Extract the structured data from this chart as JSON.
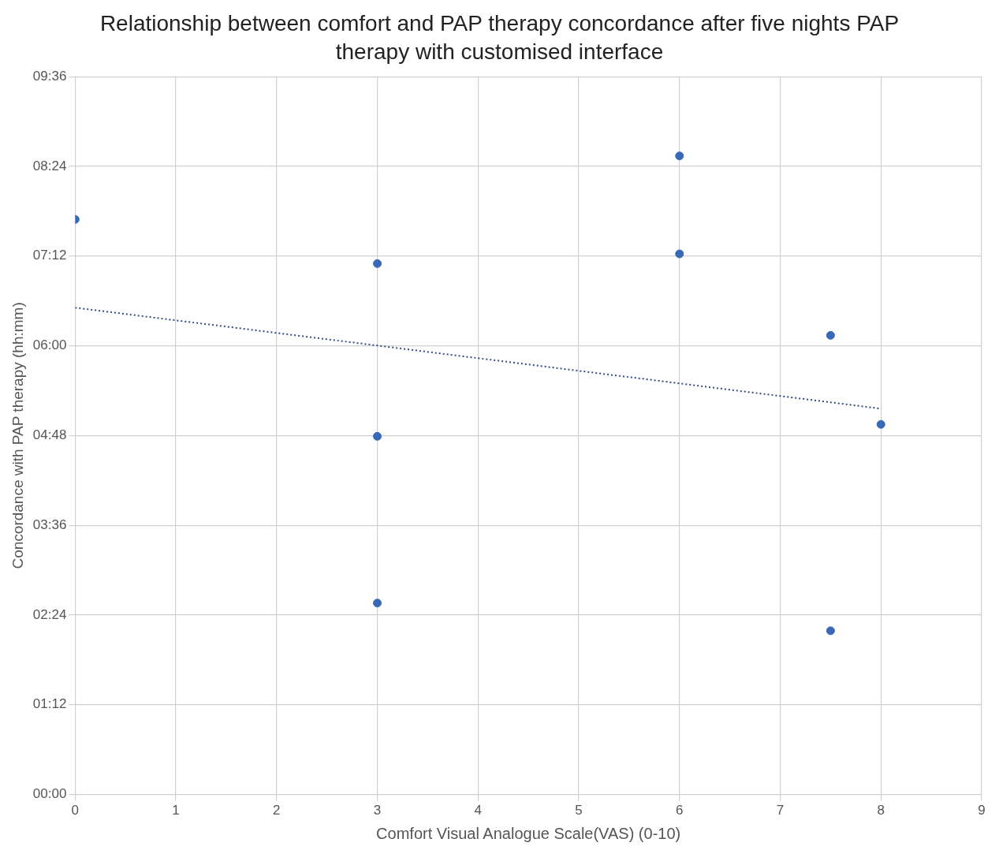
{
  "chart_data": {
    "type": "scatter",
    "title": "Relationship between comfort and PAP therapy concordance after five nights PAP therapy with customised interface",
    "xlabel": "Comfort Visual Analogue Scale(VAS) (0-10)",
    "ylabel": "Concordance with PAP therapy (hh:mm)",
    "series": [
      {
        "type": "scatter",
        "color": "#3a68b8",
        "marker": "circle",
        "x": [
          0,
          3,
          3,
          3,
          6,
          6,
          7.5,
          7.5,
          8
        ],
        "values": [
          7.69,
          7.1,
          4.79,
          2.56,
          8.54,
          7.23,
          6.14,
          2.19,
          4.95
        ]
      },
      {
        "type": "line",
        "color": "#2f4f86",
        "line_style": "dotted",
        "marker": "none",
        "x": [
          0,
          8
        ],
        "values": [
          6.51,
          5.16
        ]
      }
    ],
    "xlim": [
      0,
      9
    ],
    "xticks": [
      0,
      1,
      2,
      3,
      4,
      5,
      6,
      7,
      8,
      9
    ],
    "ylim": [
      0,
      9.6
    ],
    "yticks": [
      {
        "value": 0,
        "label": "00:00"
      },
      {
        "value": 1.2,
        "label": "01:12"
      },
      {
        "value": 2.4,
        "label": "02:24"
      },
      {
        "value": 3.6,
        "label": "03:36"
      },
      {
        "value": 4.8,
        "label": "04:48"
      },
      {
        "value": 6,
        "label": "06:00"
      },
      {
        "value": 7.2,
        "label": "07:12"
      },
      {
        "value": 8.4,
        "label": "08:24"
      },
      {
        "value": 9.6,
        "label": "09:36"
      }
    ],
    "grid": true,
    "legend": false
  }
}
